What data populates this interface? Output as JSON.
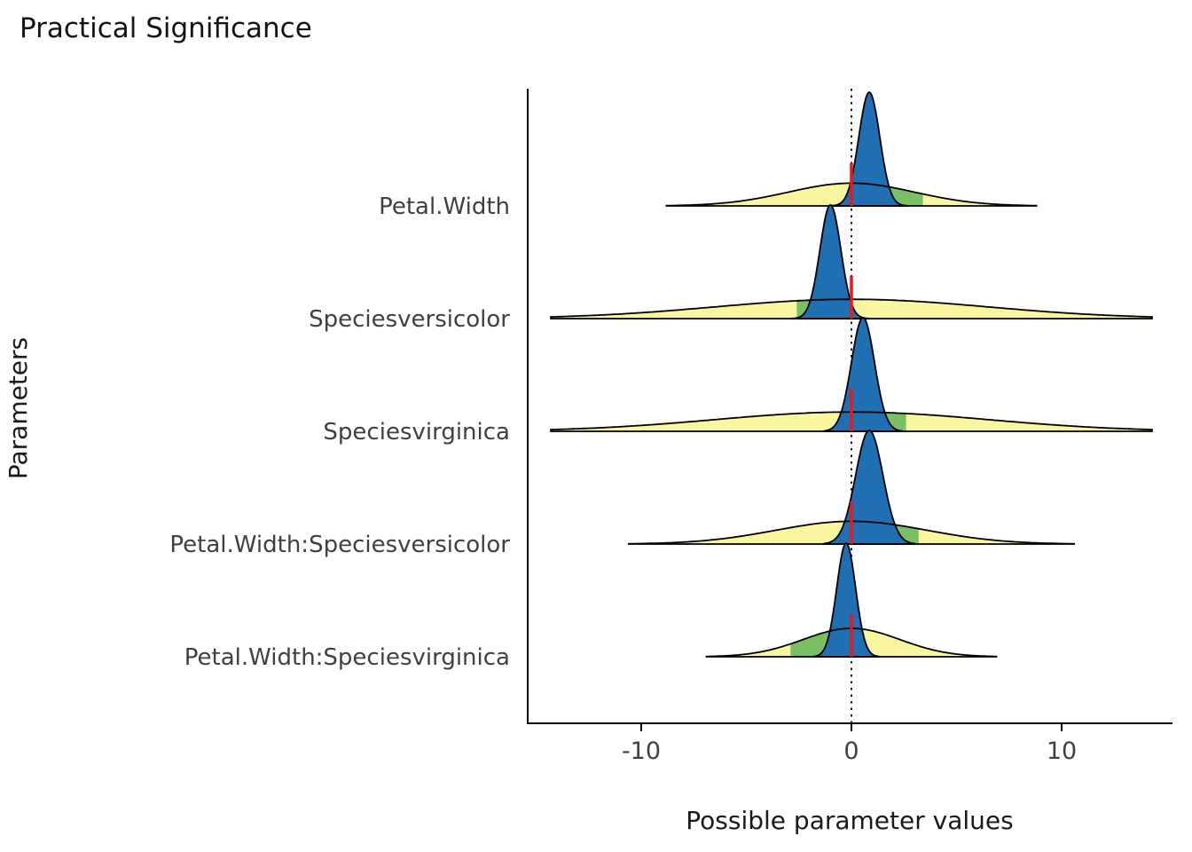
{
  "chart_data": {
    "type": "area",
    "variant": "ridgeline_density_pairs",
    "title": "Practical Significance",
    "xlabel": "Possible parameter values",
    "ylabel": "Parameters",
    "x_ticks": [
      -10,
      0,
      10
    ],
    "xlim": [
      -15.4,
      15.3
    ],
    "grid": false,
    "legend_position": "none",
    "zero_line": {
      "x": 0,
      "style": "dotted",
      "color": "#000000"
    },
    "colors": {
      "posterior_fill": "#1f6fb2",
      "prior_fill": "#f9f6a2",
      "direction_fill": "#7abf66",
      "outline": "#000000",
      "marker_line": "#e41a1c"
    },
    "rows": [
      {
        "label": "Petal.Width",
        "posterior": {
          "center": 0.85,
          "sd": 0.5,
          "height": 1.0,
          "range": [
            -0.9,
            2.6
          ]
        },
        "prior": {
          "center": 0,
          "sd": 3.0,
          "height": 0.2,
          "range": [
            -8.8,
            8.8
          ]
        },
        "highlight": [
          0,
          3.4
        ]
      },
      {
        "label": "Speciesversicolor",
        "posterior": {
          "center": -1.0,
          "sd": 0.5,
          "height": 1.0,
          "range": [
            -2.8,
            0.8
          ]
        },
        "prior": {
          "center": 0,
          "sd": 6.5,
          "height": 0.17,
          "range": [
            -14.3,
            14.3
          ]
        },
        "highlight": [
          -2.6,
          0
        ]
      },
      {
        "label": "Speciesvirginica",
        "posterior": {
          "center": 0.55,
          "sd": 0.55,
          "height": 1.0,
          "range": [
            -1.3,
            2.4
          ]
        },
        "prior": {
          "center": 0,
          "sd": 6.5,
          "height": 0.17,
          "range": [
            -14.3,
            14.3
          ]
        },
        "highlight": [
          0,
          2.6
        ]
      },
      {
        "label": "Petal.Width:Speciesversicolor",
        "posterior": {
          "center": 0.85,
          "sd": 0.65,
          "height": 1.0,
          "range": [
            -1.3,
            3.0
          ]
        },
        "prior": {
          "center": 0,
          "sd": 3.6,
          "height": 0.2,
          "range": [
            -10.6,
            10.6
          ]
        },
        "highlight": [
          0,
          3.2
        ]
      },
      {
        "label": "Petal.Width:Speciesvirginica",
        "posterior": {
          "center": -0.25,
          "sd": 0.45,
          "height": 1.0,
          "range": [
            -1.8,
            1.3
          ]
        },
        "prior": {
          "center": 0,
          "sd": 2.3,
          "height": 0.25,
          "range": [
            -6.9,
            6.9
          ]
        },
        "highlight": [
          -2.9,
          0
        ]
      }
    ]
  }
}
